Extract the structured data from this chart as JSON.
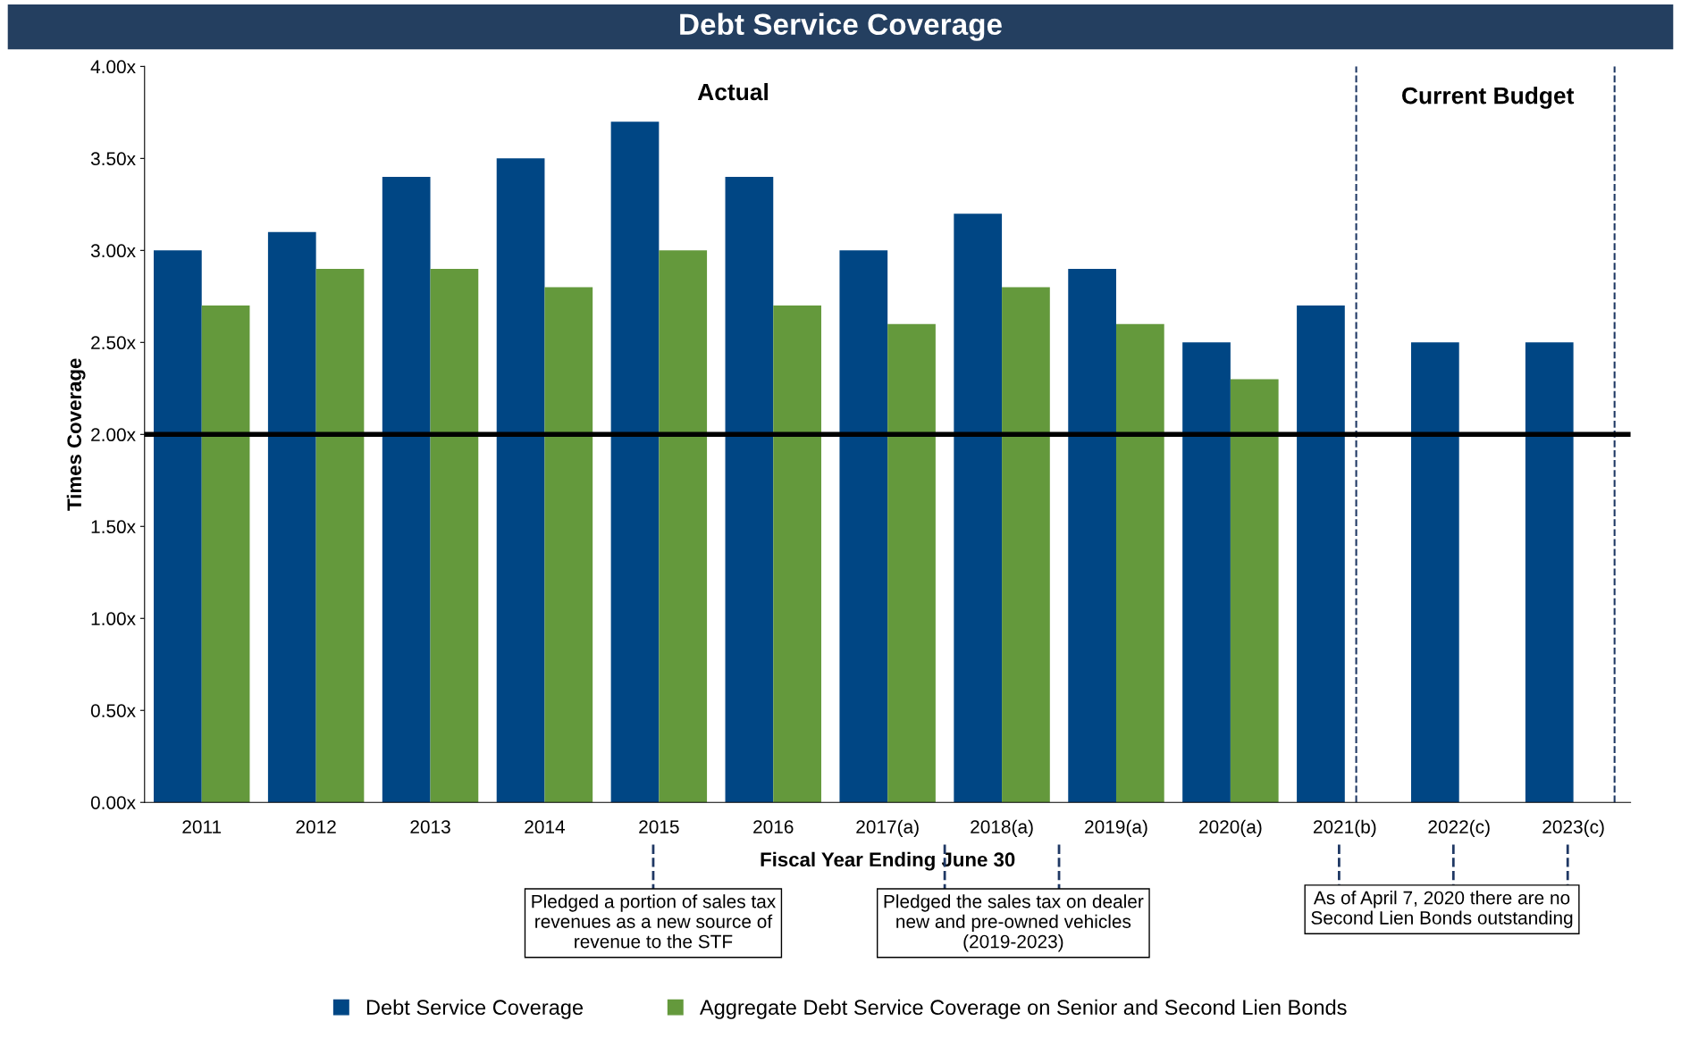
{
  "chart_data": {
    "type": "bar",
    "title": "Debt Service Coverage",
    "xlabel": "Fiscal Year Ending June 30",
    "ylabel": "Times Coverage",
    "categories": [
      "2011",
      "2012",
      "2013",
      "2014",
      "2015",
      "2016",
      "2017(a)",
      "2018(a)",
      "2019(a)",
      "2020(a)",
      "2021(b)",
      "2022(c)",
      "2023(c)"
    ],
    "series": [
      {
        "name": "Debt Service Coverage",
        "color": "#004684",
        "values": [
          3.0,
          3.1,
          3.4,
          3.5,
          3.7,
          3.4,
          3.0,
          3.2,
          2.9,
          2.5,
          2.7,
          2.5,
          2.5
        ]
      },
      {
        "name": "Aggregate Debt Service Coverage on Senior and Second Lien Bonds",
        "color": "#64993c",
        "values": [
          2.7,
          2.9,
          2.9,
          2.8,
          3.0,
          2.7,
          2.6,
          2.8,
          2.6,
          2.3,
          null,
          null,
          null
        ]
      }
    ],
    "ylim": [
      0,
      4
    ],
    "yticks": [
      {
        "value": 0,
        "label": "0.00x"
      },
      {
        "value": 0.5,
        "label": "0.50x"
      },
      {
        "value": 1,
        "label": "1.00x"
      },
      {
        "value": 1.5,
        "label": "1.50x"
      },
      {
        "value": 2,
        "label": "2.00x"
      },
      {
        "value": 2.5,
        "label": "2.50x"
      },
      {
        "value": 3,
        "label": "3.00x"
      },
      {
        "value": 3.5,
        "label": "3.50x"
      },
      {
        "value": 4,
        "label": "4.00x"
      }
    ],
    "ref_lines": [
      {
        "axis": "y",
        "value": 2,
        "color": "#000000",
        "line_style": "solid"
      },
      {
        "axis": "x",
        "value": "2021(b)",
        "color": "#1f3864",
        "line_style": "dashed"
      },
      {
        "axis": "x",
        "value": "2023(c)",
        "color": "#1f3864",
        "line_style": "dashed"
      }
    ],
    "annotations": [
      "Actual",
      "Current Budget",
      "Pledged a portion of sales tax\nrevenues as a new source of\nrevenue to the STF",
      "Pledged the sales tax on dealer\nnew and pre-owned vehicles\n(2019-2023)",
      "As of April 7, 2020 there are no\nSecond Lien Bonds outstanding"
    ],
    "grid": false,
    "legend": "bottom"
  }
}
